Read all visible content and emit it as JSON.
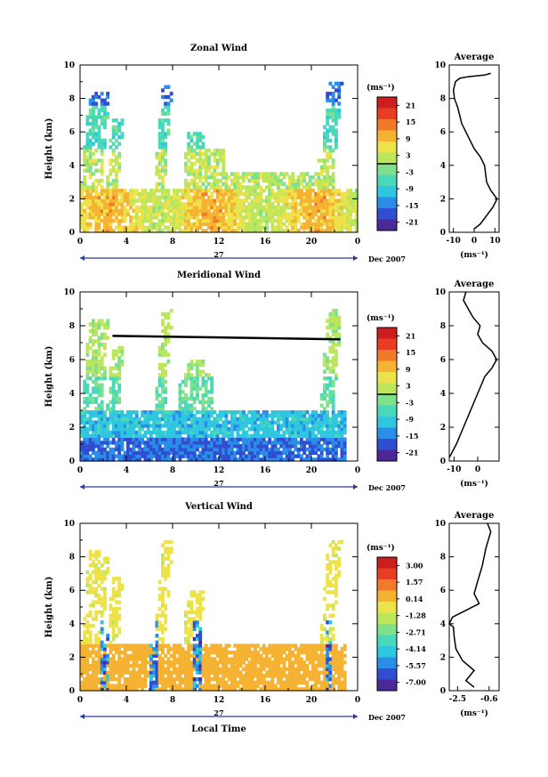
{
  "chart_data": [
    {
      "type": "heatmap",
      "title": "Zonal Wind",
      "ylabel": "Height (km)",
      "ylim": [
        0,
        10
      ],
      "xlim": [
        0,
        24
      ],
      "xticks": [
        "0",
        "4",
        "8",
        "12",
        "16",
        "20",
        "0"
      ],
      "yticks": [
        "0",
        "2",
        "4",
        "6",
        "8",
        "10"
      ],
      "date_label": "27",
      "month_label": "Dec 2007",
      "colorbar": {
        "unit": "(ms⁻¹)",
        "ticks": [
          "21",
          "15",
          "9",
          "3",
          "-3",
          "-9",
          "-15",
          "-21"
        ],
        "range": [
          -24,
          24
        ]
      },
      "average": {
        "title": "Average",
        "xlabel": "(ms⁻¹)",
        "xticks": [
          "-10",
          "0",
          "10"
        ],
        "xlim": [
          -12,
          12
        ],
        "profile": [
          [
            0.2,
            0
          ],
          [
            0.5,
            3
          ],
          [
            1,
            6
          ],
          [
            1.5,
            9
          ],
          [
            2,
            11
          ],
          [
            2.5,
            8
          ],
          [
            3,
            6
          ],
          [
            4,
            5
          ],
          [
            4.5,
            3
          ],
          [
            5,
            0
          ],
          [
            5.5,
            -2
          ],
          [
            6,
            -4
          ],
          [
            6.5,
            -6
          ],
          [
            7,
            -7
          ],
          [
            7.5,
            -8
          ],
          [
            8,
            -9.5
          ],
          [
            8.5,
            -10
          ],
          [
            9,
            -9
          ],
          [
            9.2,
            -7
          ],
          [
            9.3,
            -3
          ],
          [
            9.4,
            5
          ],
          [
            9.5,
            8
          ]
        ]
      }
    },
    {
      "type": "heatmap",
      "title": "Meridional Wind",
      "ylabel": "Height (km)",
      "ylim": [
        0,
        10
      ],
      "xlim": [
        0,
        24
      ],
      "xticks": [
        "0",
        "4",
        "8",
        "12",
        "16",
        "20",
        "0"
      ],
      "yticks": [
        "0",
        "2",
        "4",
        "6",
        "8",
        "10"
      ],
      "date_label": "27",
      "month_label": "Dec 2007",
      "colorbar": {
        "unit": "(ms⁻¹)",
        "ticks": [
          "21",
          "15",
          "9",
          "3",
          "-3",
          "-9",
          "-15",
          "-21"
        ],
        "range": [
          -24,
          24
        ]
      },
      "average": {
        "title": "Average",
        "xlabel": "(ms⁻¹)",
        "xticks": [
          "-10",
          "0"
        ],
        "xlim": [
          -12,
          9
        ],
        "profile": [
          [
            0.2,
            -12
          ],
          [
            1,
            -9
          ],
          [
            2,
            -6
          ],
          [
            3,
            -3
          ],
          [
            4,
            0
          ],
          [
            5,
            3
          ],
          [
            5.5,
            6
          ],
          [
            6,
            8
          ],
          [
            6.5,
            6
          ],
          [
            7,
            2
          ],
          [
            7.5,
            0
          ],
          [
            8,
            1
          ],
          [
            8.5,
            -2
          ],
          [
            9,
            -4
          ],
          [
            9.5,
            -6
          ],
          [
            10,
            -5
          ]
        ]
      }
    },
    {
      "type": "heatmap",
      "title": "Vertical Wind",
      "ylabel": "Height (km)",
      "xlabel": "Local Time",
      "ylim": [
        0,
        10
      ],
      "xlim": [
        0,
        24
      ],
      "xticks": [
        "0",
        "4",
        "8",
        "12",
        "16",
        "20",
        "0"
      ],
      "yticks": [
        "0",
        "2",
        "4",
        "6",
        "8",
        "10"
      ],
      "date_label": "27",
      "month_label": "Dec 2007",
      "colorbar": {
        "unit": "(ms⁻¹)",
        "ticks": [
          "3.00",
          "1.57",
          "0.14",
          "-1.28",
          "-2.71",
          "-4.14",
          "-5.57",
          "-7.00"
        ],
        "range": [
          -7.7,
          3.7
        ]
      },
      "average": {
        "title": "Average",
        "xlabel": "(ms⁻¹)",
        "xticks": [
          "-2.5",
          "-0.6"
        ],
        "xlim": [
          -3,
          0
        ],
        "profile": [
          [
            0.2,
            -1.5
          ],
          [
            0.6,
            -2.0
          ],
          [
            1.2,
            -1.5
          ],
          [
            1.8,
            -2.2
          ],
          [
            2.5,
            -2.6
          ],
          [
            3.2,
            -2.7
          ],
          [
            3.8,
            -2.75
          ],
          [
            4.0,
            -3.0
          ],
          [
            4.4,
            -2.8
          ],
          [
            4.8,
            -2.0
          ],
          [
            5.2,
            -1.2
          ],
          [
            5.8,
            -1.5
          ],
          [
            6.5,
            -1.3
          ],
          [
            7.5,
            -1.0
          ],
          [
            8.5,
            -0.8
          ],
          [
            9.5,
            -0.5
          ],
          [
            10,
            -0.7
          ]
        ]
      }
    }
  ]
}
